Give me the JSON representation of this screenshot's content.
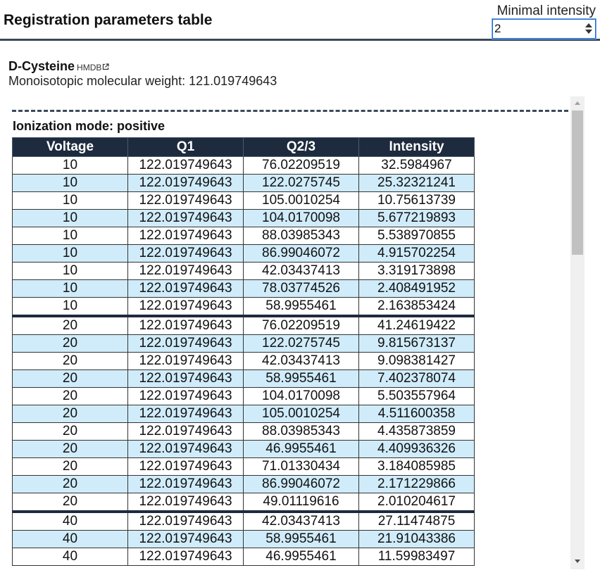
{
  "header": {
    "title": "Registration parameters table",
    "intensity_label": "Minimal intensity",
    "intensity_value": "2"
  },
  "compound": {
    "name": "D-Cysteine",
    "link_label": "HMDB",
    "mw_text": "Monoisotopic molecular weight: 121.019749643"
  },
  "section": {
    "mode_label": "Ionization mode: positive"
  },
  "table": {
    "headers": [
      "Voltage",
      "Q1",
      "Q2/3",
      "Intensity"
    ],
    "rows": [
      [
        "10",
        "122.019749643",
        "76.02209519",
        "32.5984967"
      ],
      [
        "10",
        "122.019749643",
        "122.0275745",
        "25.32321241"
      ],
      [
        "10",
        "122.019749643",
        "105.0010254",
        "10.75613739"
      ],
      [
        "10",
        "122.019749643",
        "104.0170098",
        "5.677219893"
      ],
      [
        "10",
        "122.019749643",
        "88.03985343",
        "5.538970855"
      ],
      [
        "10",
        "122.019749643",
        "86.99046072",
        "4.915702254"
      ],
      [
        "10",
        "122.019749643",
        "42.03437413",
        "3.319173898"
      ],
      [
        "10",
        "122.019749643",
        "78.03774526",
        "2.408491952"
      ],
      [
        "10",
        "122.019749643",
        "58.9955461",
        "2.163853424"
      ],
      [
        "20",
        "122.019749643",
        "76.02209519",
        "41.24619422"
      ],
      [
        "20",
        "122.019749643",
        "122.0275745",
        "9.815673137"
      ],
      [
        "20",
        "122.019749643",
        "42.03437413",
        "9.098381427"
      ],
      [
        "20",
        "122.019749643",
        "58.9955461",
        "7.402378074"
      ],
      [
        "20",
        "122.019749643",
        "104.0170098",
        "5.503557964"
      ],
      [
        "20",
        "122.019749643",
        "105.0010254",
        "4.511600358"
      ],
      [
        "20",
        "122.019749643",
        "88.03985343",
        "4.435873859"
      ],
      [
        "20",
        "122.019749643",
        "46.9955461",
        "4.409936326"
      ],
      [
        "20",
        "122.019749643",
        "71.01330434",
        "3.184085985"
      ],
      [
        "20",
        "122.019749643",
        "86.99046072",
        "2.171229866"
      ],
      [
        "20",
        "122.019749643",
        "49.01119616",
        "2.010204617"
      ],
      [
        "40",
        "122.019749643",
        "42.03437413",
        "27.11474875"
      ],
      [
        "40",
        "122.019749643",
        "58.9955461",
        "21.91043386"
      ],
      [
        "40",
        "122.019749643",
        "46.9955461",
        "11.59983497"
      ]
    ]
  },
  "colors": {
    "header_rule": "#3b4a5a",
    "table_header_bg": "#1e2b3e",
    "row_alt_bg": "#d0ecfa",
    "row_bg": "#ffffff"
  },
  "icons": {
    "external_link": "external-link-icon",
    "spinner": "spinner-arrows-icon"
  }
}
